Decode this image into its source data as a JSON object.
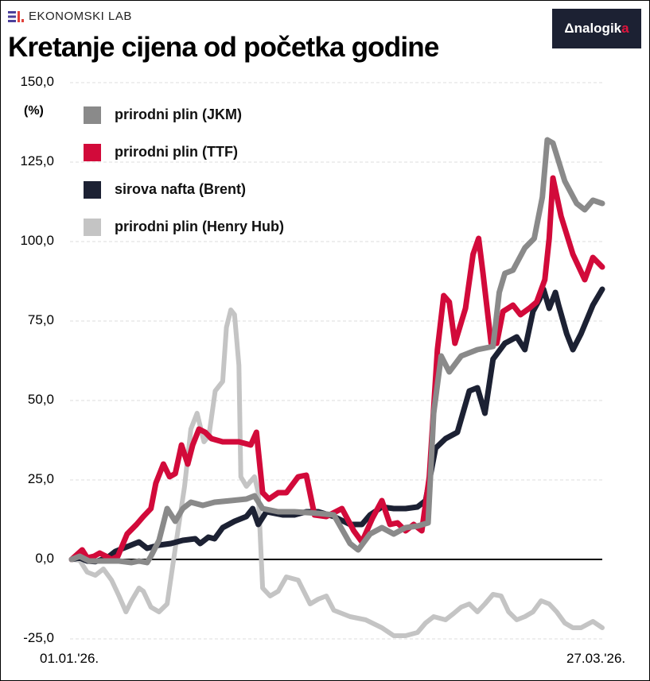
{
  "header": {
    "brand": "EKONOMSKI LAB",
    "title": "Kretanje cijena od početka godine",
    "partner_logo": {
      "prefix": "Δ",
      "text": "nalogik",
      "accent": "a"
    }
  },
  "chart_data": {
    "type": "line",
    "title": "Kretanje cijena od početka godine",
    "ylabel": "(%)",
    "xlabel": "",
    "ylim": [
      -25,
      150
    ],
    "yticks": [
      150,
      125,
      100,
      75,
      50,
      25,
      0,
      -25
    ],
    "ytick_labels": [
      "150,0",
      "125,0",
      "100,0",
      "75,0",
      "50,0",
      "25,0",
      "0,0",
      "-25,0"
    ],
    "x_unit": "days since 01.01.'26.",
    "xlim": [
      0,
      85
    ],
    "xtick_labels": [
      "01.01.'26.",
      "27.03.'26."
    ],
    "grid": "horizontal dashed",
    "legend_position": "top-left",
    "series": [
      {
        "name": "prirodni plin (JKM)",
        "color": "#8a8a8a",
        "points": [
          [
            0,
            0
          ],
          [
            1.3,
            1
          ],
          [
            2.8,
            -0.5
          ],
          [
            5.3,
            -0.5
          ],
          [
            7.6,
            -0.5
          ],
          [
            9.6,
            -1
          ],
          [
            10.8,
            -0.5
          ],
          [
            12.1,
            -1
          ],
          [
            12.7,
            1
          ],
          [
            14,
            6
          ],
          [
            15.3,
            16
          ],
          [
            16.6,
            12
          ],
          [
            17.8,
            16
          ],
          [
            19.1,
            18
          ],
          [
            21,
            17
          ],
          [
            22.9,
            18
          ],
          [
            25.5,
            18.5
          ],
          [
            28,
            19
          ],
          [
            29.3,
            20
          ],
          [
            30.6,
            16
          ],
          [
            33.1,
            15
          ],
          [
            35.7,
            15
          ],
          [
            39.5,
            14.5
          ],
          [
            42,
            14
          ],
          [
            44.6,
            5
          ],
          [
            45.9,
            3
          ],
          [
            47.8,
            8
          ],
          [
            49.7,
            10
          ],
          [
            51.6,
            8
          ],
          [
            53.5,
            10
          ],
          [
            55.4,
            10.5
          ],
          [
            57.1,
            11.5
          ],
          [
            58,
            46
          ],
          [
            59.2,
            64
          ],
          [
            60.5,
            59
          ],
          [
            62.4,
            64
          ],
          [
            65,
            66
          ],
          [
            67.5,
            67
          ],
          [
            68.5,
            84
          ],
          [
            69.4,
            90
          ],
          [
            70.7,
            91
          ],
          [
            72.6,
            98
          ],
          [
            74.1,
            101
          ],
          [
            75.4,
            114
          ],
          [
            76.2,
            132
          ],
          [
            77.1,
            131
          ],
          [
            79,
            119
          ],
          [
            80.9,
            112
          ],
          [
            82.2,
            110
          ],
          [
            83.5,
            113
          ],
          [
            85,
            112
          ]
        ]
      },
      {
        "name": "prirodni plin (TTF)",
        "color": "#d20a3a",
        "points": [
          [
            0,
            0
          ],
          [
            1.7,
            3
          ],
          [
            2.5,
            0.5
          ],
          [
            3.6,
            1
          ],
          [
            4.5,
            2
          ],
          [
            5.5,
            1
          ],
          [
            6.4,
            0
          ],
          [
            7.4,
            1
          ],
          [
            8.9,
            8
          ],
          [
            10.4,
            11
          ],
          [
            11.5,
            13.5
          ],
          [
            12.7,
            16
          ],
          [
            13.5,
            24
          ],
          [
            14.7,
            30
          ],
          [
            15.7,
            26
          ],
          [
            16.6,
            27
          ],
          [
            17.6,
            36
          ],
          [
            18.6,
            30
          ],
          [
            19.4,
            36
          ],
          [
            20.4,
            41
          ],
          [
            21.4,
            40
          ],
          [
            22.4,
            38
          ],
          [
            24.2,
            37
          ],
          [
            26.8,
            37
          ],
          [
            28.7,
            36
          ],
          [
            29.6,
            40
          ],
          [
            30.6,
            21
          ],
          [
            31.6,
            19
          ],
          [
            33.1,
            21
          ],
          [
            34.4,
            21
          ],
          [
            36.3,
            26
          ],
          [
            37.6,
            26.5
          ],
          [
            38.9,
            14
          ],
          [
            40.8,
            13.5
          ],
          [
            43.3,
            16
          ],
          [
            45.2,
            9
          ],
          [
            46.5,
            5.5
          ],
          [
            48.2,
            13
          ],
          [
            49.7,
            18.5
          ],
          [
            51,
            11
          ],
          [
            52.2,
            11.5
          ],
          [
            53.5,
            9
          ],
          [
            54.8,
            11
          ],
          [
            56.1,
            9
          ],
          [
            57.3,
            26
          ],
          [
            58.6,
            66
          ],
          [
            59.6,
            83
          ],
          [
            60.5,
            81
          ],
          [
            61.4,
            68
          ],
          [
            63.1,
            79
          ],
          [
            64.3,
            96
          ],
          [
            65.2,
            101
          ],
          [
            65.9,
            90
          ],
          [
            67.2,
            68
          ],
          [
            68.1,
            68
          ],
          [
            69.1,
            78
          ],
          [
            70.7,
            80
          ],
          [
            71.9,
            77
          ],
          [
            73.3,
            79
          ],
          [
            74.5,
            81
          ],
          [
            75.8,
            88
          ],
          [
            76.5,
            101
          ],
          [
            77.1,
            120
          ],
          [
            78.4,
            108
          ],
          [
            80.3,
            96
          ],
          [
            82.2,
            88
          ],
          [
            83.5,
            95
          ],
          [
            85,
            92
          ]
        ]
      },
      {
        "name": "sirova nafta (Brent)",
        "color": "#1c2133",
        "points": [
          [
            0,
            0
          ],
          [
            1.3,
            0.5
          ],
          [
            2.5,
            -0.5
          ],
          [
            3.8,
            -0.7
          ],
          [
            5.7,
            0.5
          ],
          [
            7,
            2.5
          ],
          [
            8.9,
            4
          ],
          [
            10.8,
            5.5
          ],
          [
            12.1,
            3.5
          ],
          [
            14,
            4.5
          ],
          [
            15.9,
            5
          ],
          [
            17.8,
            6
          ],
          [
            19.8,
            6.5
          ],
          [
            20.6,
            5
          ],
          [
            21.9,
            7
          ],
          [
            22.9,
            6.5
          ],
          [
            24.2,
            10
          ],
          [
            26.1,
            12
          ],
          [
            28,
            13.5
          ],
          [
            29,
            16
          ],
          [
            29.9,
            11
          ],
          [
            31.2,
            15
          ],
          [
            33.8,
            14
          ],
          [
            35.7,
            14
          ],
          [
            37.6,
            15
          ],
          [
            39.5,
            15
          ],
          [
            42,
            13.5
          ],
          [
            44.6,
            11
          ],
          [
            46.5,
            11
          ],
          [
            47.8,
            14
          ],
          [
            49.7,
            16.5
          ],
          [
            51.6,
            16
          ],
          [
            53.5,
            16
          ],
          [
            55.4,
            16.5
          ],
          [
            56.7,
            18.5
          ],
          [
            58.3,
            35
          ],
          [
            59.9,
            38
          ],
          [
            61.8,
            40
          ],
          [
            63.7,
            53
          ],
          [
            65,
            54
          ],
          [
            66.2,
            46
          ],
          [
            67.5,
            63
          ],
          [
            69.4,
            68
          ],
          [
            71.3,
            70
          ],
          [
            72.6,
            66
          ],
          [
            73.9,
            78
          ],
          [
            75,
            82
          ],
          [
            75.6,
            85
          ],
          [
            76.5,
            79
          ],
          [
            77.5,
            84
          ],
          [
            78,
            80
          ],
          [
            79.3,
            71
          ],
          [
            80.3,
            66
          ],
          [
            81.6,
            71
          ],
          [
            83.5,
            80
          ],
          [
            85,
            85
          ]
        ]
      },
      {
        "name": "prirodni plin (Henry Hub)",
        "color": "#c4c4c4",
        "points": [
          [
            0,
            0
          ],
          [
            1.3,
            -0.3
          ],
          [
            2.5,
            -4
          ],
          [
            3.8,
            -5
          ],
          [
            5.1,
            -3
          ],
          [
            6.4,
            -6.5
          ],
          [
            7.6,
            -11.5
          ],
          [
            8.7,
            -16.5
          ],
          [
            9.6,
            -13
          ],
          [
            10.8,
            -9
          ],
          [
            11.5,
            -10
          ],
          [
            12.7,
            -15
          ],
          [
            14,
            -16.5
          ],
          [
            15.3,
            -14
          ],
          [
            16.6,
            3.5
          ],
          [
            18.1,
            23
          ],
          [
            19.1,
            41
          ],
          [
            20.1,
            46
          ],
          [
            21.2,
            37
          ],
          [
            22,
            39
          ],
          [
            23,
            53
          ],
          [
            24.2,
            56
          ],
          [
            24.8,
            73
          ],
          [
            25.5,
            78.5
          ],
          [
            26.1,
            77
          ],
          [
            26.8,
            61
          ],
          [
            27.1,
            26
          ],
          [
            28,
            23
          ],
          [
            29.3,
            26
          ],
          [
            29.9,
            21
          ],
          [
            30.6,
            -9
          ],
          [
            31.8,
            -11.5
          ],
          [
            33.1,
            -10
          ],
          [
            34.4,
            -5.5
          ],
          [
            36.3,
            -6.5
          ],
          [
            38.2,
            -14
          ],
          [
            39.5,
            -12.5
          ],
          [
            40.8,
            -11.5
          ],
          [
            42,
            -16
          ],
          [
            44.6,
            -18
          ],
          [
            47.1,
            -19
          ],
          [
            49.7,
            -21.5
          ],
          [
            51.6,
            -24
          ],
          [
            53.5,
            -24
          ],
          [
            55.4,
            -23
          ],
          [
            56.7,
            -20
          ],
          [
            58,
            -18
          ],
          [
            59.9,
            -19
          ],
          [
            61.2,
            -17
          ],
          [
            62.4,
            -15
          ],
          [
            63.7,
            -14
          ],
          [
            65,
            -16.5
          ],
          [
            66.2,
            -14
          ],
          [
            67.5,
            -11
          ],
          [
            68.8,
            -11.5
          ],
          [
            70,
            -16.5
          ],
          [
            71.3,
            -19
          ],
          [
            72.6,
            -18
          ],
          [
            73.9,
            -16.5
          ],
          [
            75.2,
            -13
          ],
          [
            76.5,
            -14
          ],
          [
            77.7,
            -16.5
          ],
          [
            79,
            -20
          ],
          [
            80.3,
            -21.5
          ],
          [
            81.6,
            -21.5
          ],
          [
            83.5,
            -19.5
          ],
          [
            85,
            -21.5
          ]
        ]
      }
    ]
  }
}
